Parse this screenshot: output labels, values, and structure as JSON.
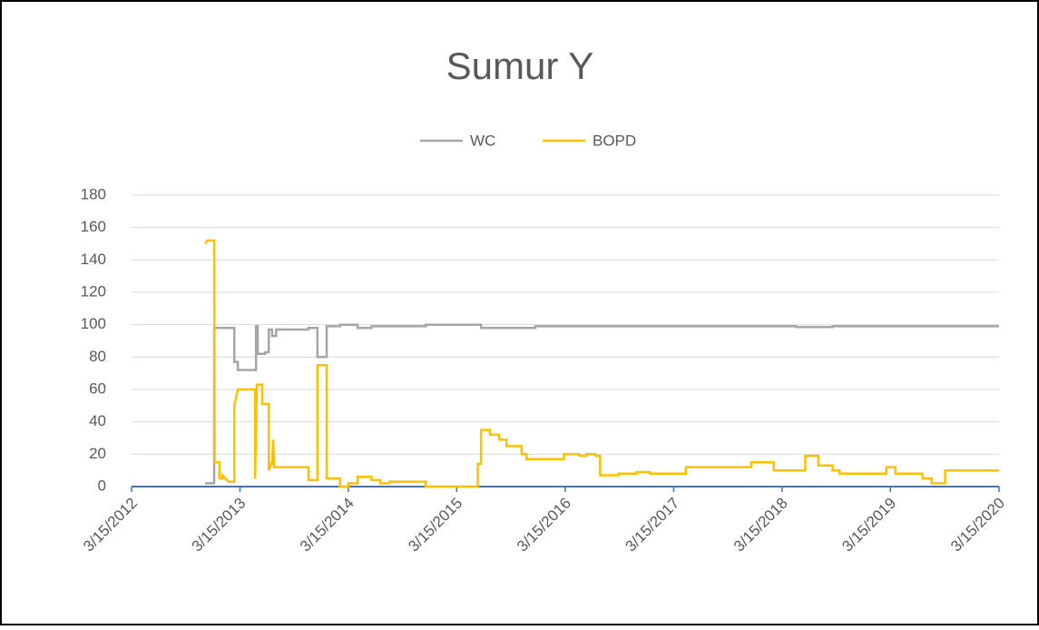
{
  "chart_data": {
    "type": "line",
    "title": "Sumur Y",
    "xlim": [
      "3/15/2012",
      "3/15/2020"
    ],
    "xticks": [
      "3/15/2012",
      "3/15/2013",
      "3/15/2014",
      "3/15/2015",
      "3/15/2016",
      "3/15/2017",
      "3/15/2018",
      "3/15/2019",
      "3/15/2020"
    ],
    "ylim": [
      0,
      180
    ],
    "yticks": [
      0,
      20,
      40,
      60,
      80,
      100,
      120,
      140,
      160,
      180
    ],
    "grid": true,
    "legend": "top",
    "series": [
      {
        "name": "WC",
        "color": "#a5a5a5",
        "x": [
          "11/18/2012",
          "12/18/2012",
          "12/18/2012",
          "2/24/2013",
          "2/24/2013",
          "3/8/2013",
          "3/8/2013",
          "5/8/2013",
          "5/8/2013",
          "5/14/2013",
          "5/14/2013",
          "6/8/2013",
          "6/8/2013",
          "6/20/2013",
          "6/20/2013",
          "7/1/2013",
          "7/1/2013",
          "7/15/2013",
          "7/15/2013",
          "11/1/2013",
          "11/1/2013",
          "12/1/2013",
          "12/1/2013",
          "1/1/2014",
          "1/1/2014",
          "2/15/2014",
          "2/15/2014",
          "4/15/2014",
          "4/15/2014",
          "6/1/2014",
          "6/1/2014",
          "12/1/2014",
          "12/1/2014",
          "6/5/2015",
          "6/5/2015",
          "12/5/2015",
          "12/5/2015",
          "5/1/2018",
          "5/1/2018",
          "9/1/2018",
          "9/1/2018",
          "3/15/2020"
        ],
        "values": [
          2,
          2,
          98,
          98,
          77,
          77,
          72,
          72,
          99,
          99,
          82,
          82,
          83,
          83,
          97,
          97,
          93,
          93,
          97,
          97,
          98,
          98,
          80,
          80,
          99,
          99,
          100,
          100,
          98,
          98,
          99,
          99,
          100,
          100,
          98,
          98,
          99,
          99,
          98.5,
          98.5,
          99,
          99
        ]
      },
      {
        "name": "BOPD",
        "color": "#ffc000",
        "x": [
          "11/18/2012",
          "11/25/2012",
          "12/18/2012",
          "12/20/2012",
          "1/5/2013",
          "1/5/2013",
          "1/15/2013",
          "1/15/2013",
          "2/5/2013",
          "2/24/2013",
          "2/24/2013",
          "3/8/2013",
          "5/5/2013",
          "5/5/2013",
          "5/11/2013",
          "5/29/2013",
          "5/29/2013",
          "6/20/2013",
          "6/20/2013",
          "7/1/2013",
          "7/5/2013",
          "7/8/2013",
          "7/18/2013",
          "11/1/2013",
          "11/1/2013",
          "12/1/2013",
          "12/1/2013",
          "1/1/2014",
          "1/1/2014",
          "2/15/2014",
          "2/15/2014",
          "3/15/2014",
          "3/15/2014",
          "4/15/2014",
          "4/15/2014",
          "6/1/2014",
          "6/1/2014",
          "7/1/2014",
          "7/1/2014",
          "8/1/2014",
          "8/1/2014",
          "12/1/2014",
          "12/1/2014",
          "5/25/2015",
          "5/25/2015",
          "6/5/2015",
          "6/5/2015",
          "7/5/2015",
          "7/5/2015",
          "8/5/2015",
          "8/5/2015",
          "8/30/2015",
          "8/30/2015",
          "10/20/2015",
          "10/20/2015",
          "11/5/2015",
          "11/5/2015",
          "3/10/2016",
          "3/10/2016",
          "5/1/2016",
          "5/1/2016",
          "5/25/2016",
          "5/25/2016",
          "6/25/2016",
          "6/25/2016",
          "7/10/2016",
          "7/10/2016",
          "9/10/2016",
          "9/10/2016",
          "11/10/2016",
          "11/10/2016",
          "12/25/2016",
          "12/25/2016",
          "4/25/2017",
          "4/25/2017",
          "12/1/2017",
          "12/1/2017",
          "2/15/2018",
          "2/15/2018",
          "6/1/2018",
          "6/1/2018",
          "7/15/2018",
          "7/15/2018",
          "9/1/2018",
          "9/1/2018",
          "9/25/2018",
          "9/25/2018",
          "3/1/2019",
          "3/1/2019",
          "4/1/2019",
          "4/1/2019",
          "7/1/2019",
          "7/1/2019",
          "8/1/2019",
          "8/1/2019",
          "9/15/2019",
          "9/15/2019",
          "3/15/2020"
        ],
        "values": [
          150,
          152,
          152,
          15,
          15,
          5,
          5,
          7,
          3,
          3,
          50,
          60,
          60,
          5,
          63,
          63,
          51,
          51,
          10,
          15,
          29,
          12,
          12,
          12,
          4,
          4,
          75,
          75,
          5,
          5,
          0,
          0,
          2,
          2,
          6,
          6,
          4,
          4,
          2,
          2,
          3,
          3,
          0,
          0,
          14,
          14,
          35,
          35,
          32,
          32,
          29,
          29,
          25,
          25,
          20,
          20,
          17,
          17,
          20,
          20,
          19,
          19,
          20,
          20,
          19,
          19,
          7,
          7,
          8,
          8,
          9,
          9,
          8,
          8,
          12,
          12,
          15,
          15,
          10,
          10,
          19,
          19,
          13,
          13,
          10,
          10,
          8,
          8,
          12,
          12,
          8,
          8,
          5,
          5,
          2,
          2,
          10,
          10
        ]
      }
    ]
  }
}
